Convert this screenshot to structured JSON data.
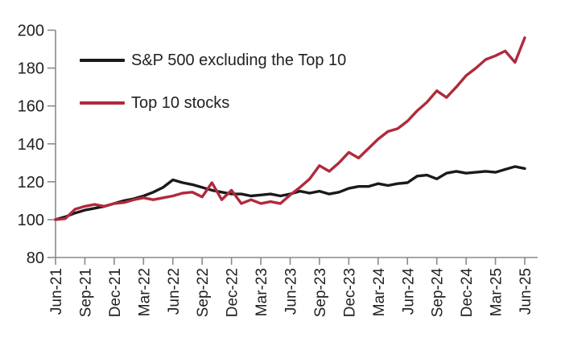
{
  "figure": {
    "background_color": "#ffffff",
    "axis_color": "#8a8a8a",
    "text_color": "#212121"
  },
  "chart_data": {
    "type": "line",
    "title": "",
    "xlabel": "",
    "ylabel": "",
    "grid": false,
    "legend_position": "inside-top-left",
    "ylim": [
      80,
      200
    ],
    "y_ticks": [
      80,
      100,
      120,
      140,
      160,
      180,
      200
    ],
    "x_tick_labels": [
      "Jun-21",
      "Sep-21",
      "Dec-21",
      "Mar-22",
      "Jun-22",
      "Sep-22",
      "Dec-22",
      "Mar-23",
      "Jun-23",
      "Sep-23",
      "Dec-23",
      "Mar-24",
      "Jun-24",
      "Sep-24",
      "Dec-24",
      "Mar-25",
      "Jun-25"
    ],
    "x_frequency": "monthly",
    "x_range": "Jun-21 to Jun-25",
    "series": [
      {
        "name": "S&P 500 excluding the Top 10",
        "color": "#1a1a1a",
        "values": [
          100,
          101.5,
          103.5,
          105,
          106,
          107,
          108.5,
          110,
          111,
          112.5,
          114.5,
          117,
          121,
          119.5,
          118.5,
          117,
          115.5,
          114.5,
          113.5,
          113.5,
          112.5,
          113,
          113.5,
          112.5,
          113.5,
          115,
          114,
          115,
          113.5,
          114.5,
          116.5,
          117.5,
          117.5,
          119,
          118,
          119,
          119.5,
          123,
          123.5,
          121.5,
          124.5,
          125.5,
          124.5,
          125,
          125.5,
          125,
          126.5,
          128,
          127
        ]
      },
      {
        "name": "Top 10 stocks",
        "color": "#b02a3c",
        "values": [
          100,
          100.5,
          105.5,
          107,
          108,
          107,
          108.5,
          109,
          110.5,
          111.5,
          110.5,
          111.5,
          112.5,
          114,
          114.5,
          112,
          119.5,
          110.5,
          115.5,
          108.5,
          110.5,
          108.5,
          109.5,
          108.5,
          113,
          117,
          121.5,
          128.5,
          125.5,
          130,
          135.5,
          132.5,
          137.5,
          142.5,
          146.5,
          148,
          152,
          157.5,
          162,
          168,
          164.5,
          170,
          176,
          180,
          184.5,
          186.5,
          189,
          183,
          196
        ]
      }
    ]
  },
  "legend": {
    "items": [
      {
        "label": "S&P 500 excluding the Top 10"
      },
      {
        "label": "Top 10 stocks"
      }
    ]
  }
}
